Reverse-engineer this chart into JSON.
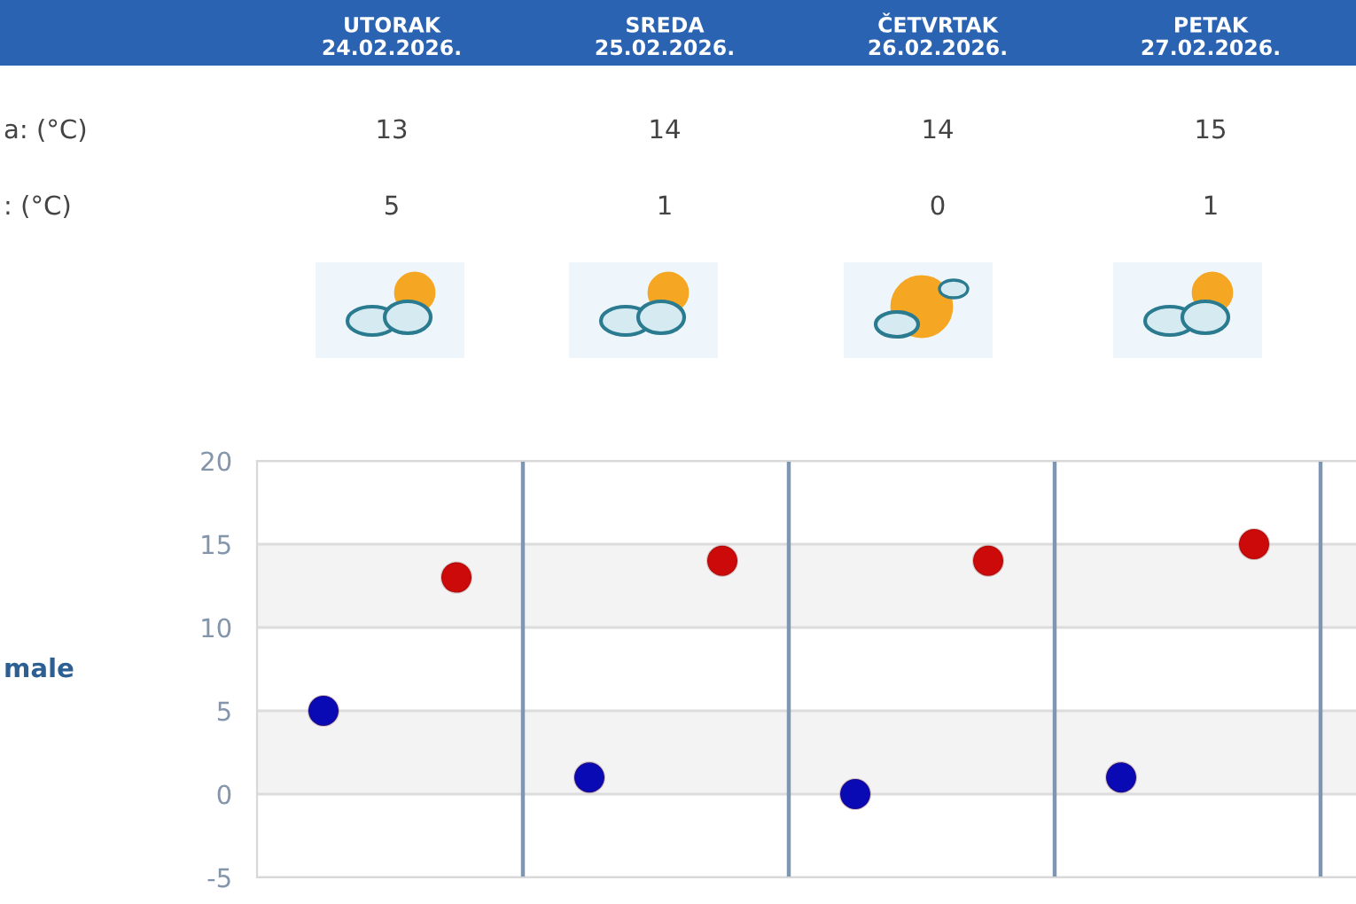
{
  "chart_data": {
    "type": "scatter",
    "categories": [
      null,
      null,
      null,
      null
    ],
    "series": [
      {
        "color": "#cc0a0a",
        "values": [
          13,
          14,
          14,
          15
        ]
      },
      {
        "color": "#0a0ab4",
        "values": [
          5,
          1,
          0,
          1
        ]
      }
    ],
    "data_labels": true,
    "annotations": [
      "UTORAK\n24.02.2026.",
      "SREDA\n25.02.2026.",
      "ČETVRTAK\n26.02.2026.",
      "PETAK\n27.02.2026.",
      "a: (°C)",
      ": (°C)",
      "male"
    ],
    "ylim": [
      -5,
      20
    ],
    "yticks": [
      -5,
      0,
      5,
      10,
      15,
      20
    ],
    "bands": [
      {
        "axis": "y",
        "from": 0,
        "to": 5,
        "color": "#f3f3f3"
      },
      {
        "axis": "y",
        "from": 10,
        "to": 15,
        "color": "#f3f3f3"
      }
    ],
    "grid": true,
    "marker": "circle"
  }
}
